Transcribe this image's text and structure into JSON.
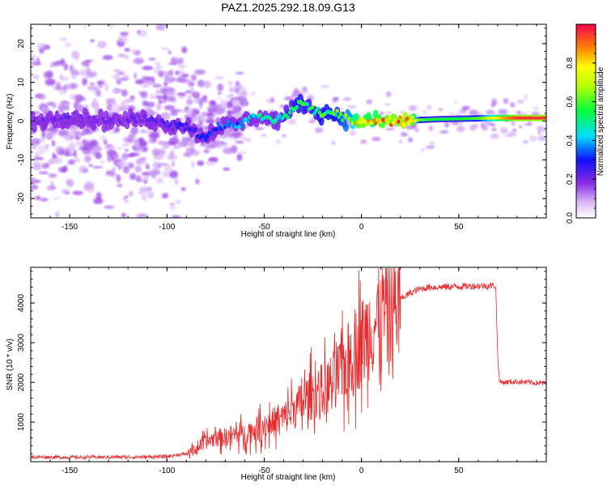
{
  "title": "PAZ1.2025.292.18.09.G13",
  "chart_data": [
    {
      "type": "heatmap",
      "title": "PAZ1.2025.292.18.09.G13",
      "xlabel": "Height of straight line (km)",
      "ylabel": "Frequency (Hz)",
      "xlim": [
        -170,
        95
      ],
      "ylim": [
        -25,
        25
      ],
      "x_ticks": [
        -150,
        -100,
        -50,
        0,
        50
      ],
      "y_ticks": [
        -20,
        -10,
        0,
        10,
        20
      ],
      "colorbar": {
        "label": "Normalized spectral amplitude",
        "range": [
          0,
          1
        ],
        "ticks": [
          "0.0",
          "0.2",
          "0.4",
          "0.6",
          "0.8"
        ],
        "tick_values": [
          0.0,
          0.2,
          0.4,
          0.6,
          0.8
        ]
      },
      "ridge": {
        "x": [
          -170,
          -150,
          -130,
          -110,
          -100,
          -90,
          -85,
          -80,
          -75,
          -70,
          -65,
          -60,
          -55,
          -50,
          -45,
          -40,
          -35,
          -32,
          -28,
          -25,
          -20,
          -15,
          -10,
          -5,
          0,
          5,
          10,
          15,
          20,
          25,
          30,
          40,
          50,
          60,
          70,
          80,
          95
        ],
        "frequency": [
          0,
          1,
          0,
          0.5,
          -1,
          -1,
          -3,
          -4,
          -2,
          -1,
          -1,
          0,
          1,
          1,
          0,
          1,
          3,
          5,
          4,
          3,
          2,
          2,
          1,
          0,
          0,
          0,
          0,
          0,
          0,
          0,
          0.3,
          0.5,
          0.6,
          0.7,
          0.8,
          0.8,
          0.8
        ],
        "amplitude": [
          0.2,
          0.22,
          0.2,
          0.22,
          0.25,
          0.28,
          0.3,
          0.3,
          0.33,
          0.35,
          0.38,
          0.42,
          0.45,
          0.5,
          0.5,
          0.52,
          0.55,
          0.6,
          0.55,
          0.55,
          0.6,
          0.6,
          0.62,
          0.7,
          0.95,
          0.8,
          0.9,
          0.92,
          0.95,
          0.98,
          0.6,
          0.55,
          0.55,
          0.6,
          0.8,
          0.95,
          0.95
        ]
      }
    },
    {
      "type": "line",
      "xlabel": "Height of straight line (km)",
      "ylabel": "SNR (10 * v/v)",
      "xlim": [
        -170,
        95
      ],
      "ylim": [
        0,
        4900
      ],
      "x_ticks": [
        -150,
        -100,
        -50,
        0,
        50
      ],
      "y_ticks": [
        1000,
        2000,
        3000,
        4000
      ],
      "series": [
        {
          "name": "SNR",
          "color": "#e8282a",
          "x": [
            -170,
            -150,
            -130,
            -110,
            -100,
            -95,
            -90,
            -85,
            -80,
            -75,
            -70,
            -65,
            -60,
            -55,
            -50,
            -45,
            -40,
            -35,
            -30,
            -25,
            -20,
            -15,
            -10,
            -5,
            0,
            5,
            10,
            15,
            20,
            25,
            30,
            35,
            40,
            50,
            60,
            69,
            70,
            71,
            80,
            95
          ],
          "values": [
            120,
            110,
            115,
            120,
            130,
            170,
            200,
            330,
            500,
            600,
            620,
            700,
            700,
            800,
            900,
            1000,
            1100,
            1300,
            1500,
            1700,
            1800,
            2000,
            2300,
            2700,
            3000,
            3400,
            3700,
            3900,
            4100,
            4250,
            4350,
            4400,
            4400,
            4420,
            4430,
            4440,
            2700,
            2000,
            2020,
            1970
          ]
        }
      ]
    }
  ]
}
